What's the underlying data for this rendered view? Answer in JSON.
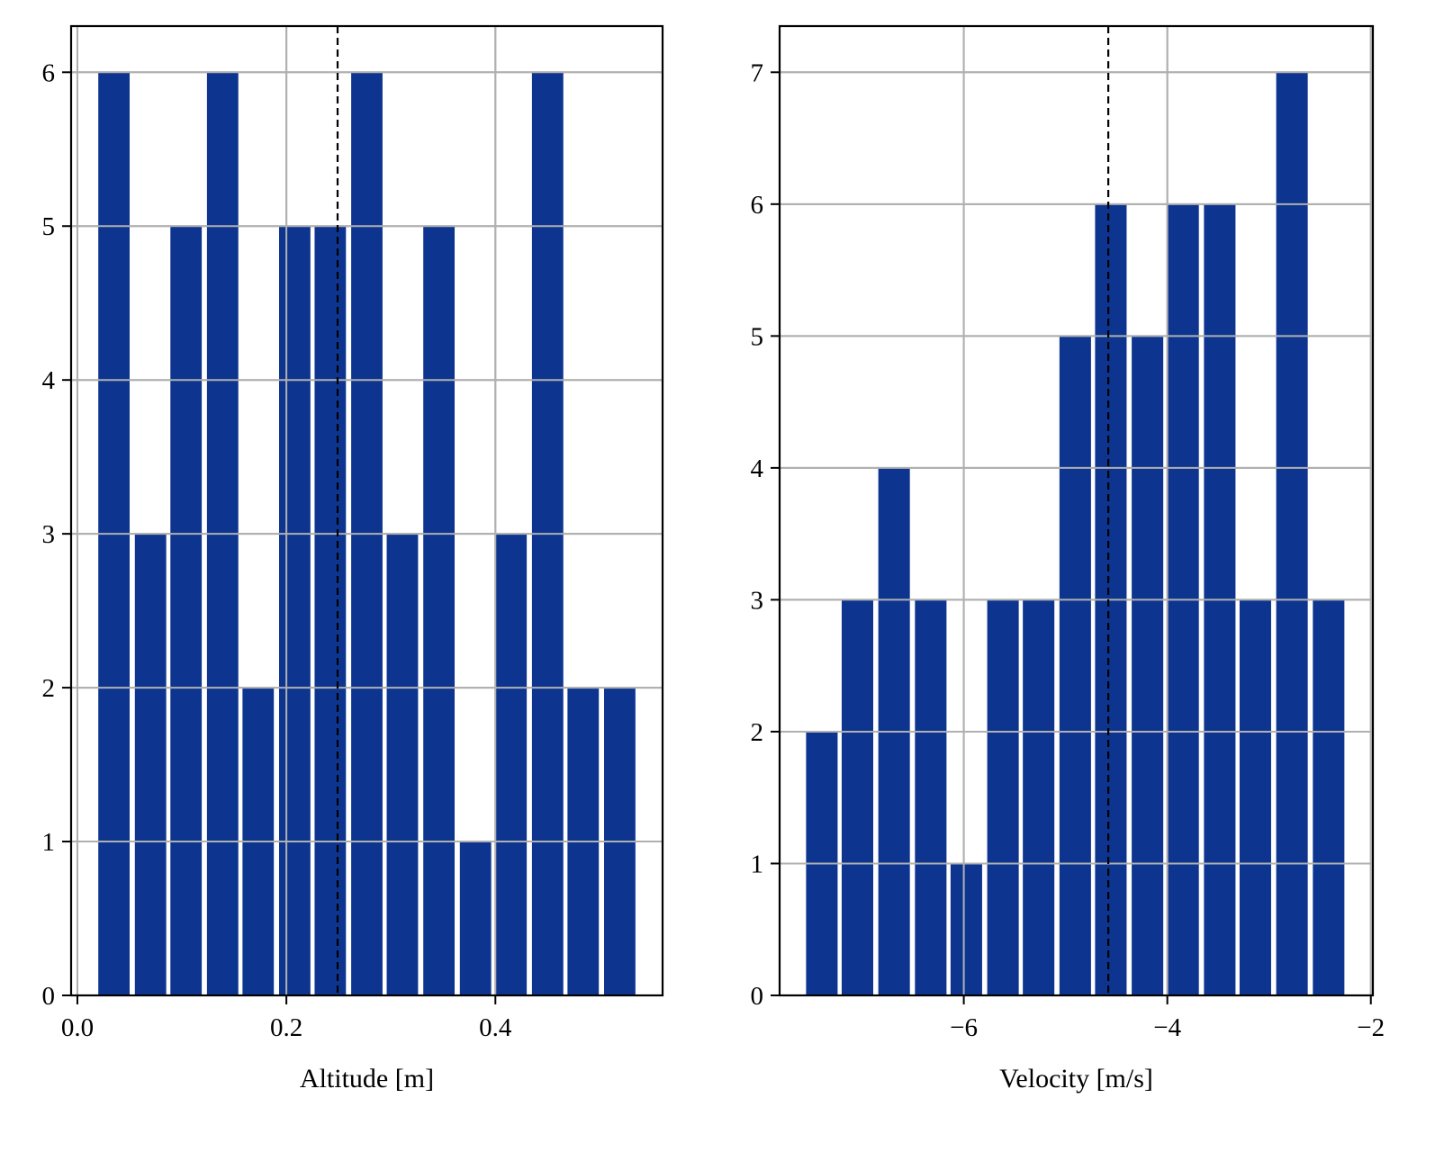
{
  "colors": {
    "bar": "#0d3590",
    "grid": "#b0b0b0",
    "axes": "#000000",
    "ref_line": "#000000"
  },
  "chart_data": [
    {
      "type": "bar",
      "title": "",
      "xlabel": "Altitude [m]",
      "ylabel": "",
      "bins": [
        {
          "x0": 0.02,
          "x1": 0.05,
          "count": 6
        },
        {
          "x0": 0.055,
          "x1": 0.085,
          "count": 3
        },
        {
          "x0": 0.089,
          "x1": 0.119,
          "count": 5
        },
        {
          "x0": 0.124,
          "x1": 0.154,
          "count": 6
        },
        {
          "x0": 0.158,
          "x1": 0.188,
          "count": 2
        },
        {
          "x0": 0.193,
          "x1": 0.223,
          "count": 5
        },
        {
          "x0": 0.227,
          "x1": 0.257,
          "count": 5
        },
        {
          "x0": 0.262,
          "x1": 0.292,
          "count": 6
        },
        {
          "x0": 0.296,
          "x1": 0.326,
          "count": 3
        },
        {
          "x0": 0.331,
          "x1": 0.361,
          "count": 5
        },
        {
          "x0": 0.366,
          "x1": 0.396,
          "count": 1
        },
        {
          "x0": 0.4,
          "x1": 0.43,
          "count": 3
        },
        {
          "x0": 0.435,
          "x1": 0.465,
          "count": 6
        },
        {
          "x0": 0.469,
          "x1": 0.499,
          "count": 2
        },
        {
          "x0": 0.504,
          "x1": 0.534,
          "count": 2
        }
      ],
      "reference_line_x": 0.249,
      "xlim": [
        -0.006,
        0.56
      ],
      "ylim": [
        0,
        6.3
      ],
      "xticks": [
        0.0,
        0.2,
        0.4
      ],
      "xtick_labels": [
        "0.0",
        "0.2",
        "0.4"
      ],
      "yticks": [
        0,
        1,
        2,
        3,
        4,
        5,
        6
      ],
      "ytick_labels": [
        "0",
        "1",
        "2",
        "3",
        "4",
        "5",
        "6"
      ],
      "grid": true
    },
    {
      "type": "bar",
      "title": "",
      "xlabel": "Velocity [m/s]",
      "ylabel": "",
      "bins": [
        {
          "x0": -7.55,
          "x1": -7.24,
          "count": 2
        },
        {
          "x0": -7.2,
          "x1": -6.89,
          "count": 3
        },
        {
          "x0": -6.84,
          "x1": -6.53,
          "count": 4
        },
        {
          "x0": -6.48,
          "x1": -6.17,
          "count": 3
        },
        {
          "x0": -6.13,
          "x1": -5.82,
          "count": 1
        },
        {
          "x0": -5.77,
          "x1": -5.46,
          "count": 3
        },
        {
          "x0": -5.42,
          "x1": -5.11,
          "count": 3
        },
        {
          "x0": -5.06,
          "x1": -4.75,
          "count": 5
        },
        {
          "x0": -4.71,
          "x1": -4.4,
          "count": 6
        },
        {
          "x0": -4.35,
          "x1": -4.04,
          "count": 5
        },
        {
          "x0": -4.0,
          "x1": -3.69,
          "count": 6
        },
        {
          "x0": -3.64,
          "x1": -3.33,
          "count": 6
        },
        {
          "x0": -3.29,
          "x1": -2.98,
          "count": 3
        },
        {
          "x0": -2.93,
          "x1": -2.62,
          "count": 7
        },
        {
          "x0": -2.57,
          "x1": -2.26,
          "count": 3
        }
      ],
      "reference_line_x": -4.58,
      "xlim": [
        -7.81,
        -1.98
      ],
      "ylim": [
        0,
        7.35
      ],
      "xticks": [
        -6,
        -4,
        -2
      ],
      "xtick_labels": [
        "−6",
        "−4",
        "−2"
      ],
      "yticks": [
        0,
        1,
        2,
        3,
        4,
        5,
        6,
        7
      ],
      "ytick_labels": [
        "0",
        "1",
        "2",
        "3",
        "4",
        "5",
        "6",
        "7"
      ],
      "grid": true
    }
  ]
}
